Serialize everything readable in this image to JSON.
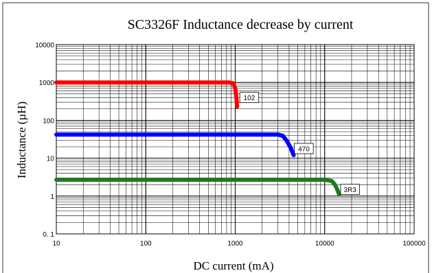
{
  "chart_data": {
    "type": "line",
    "title": "SC3326F Inductance decrease by current",
    "xlabel": "DC current (mA)",
    "ylabel": "Inductance (µH)",
    "x_scale": "log",
    "y_scale": "log",
    "xlim": [
      10,
      100000
    ],
    "ylim": [
      0.1,
      10000
    ],
    "x_ticks": [
      10,
      100,
      1000,
      10000,
      100000
    ],
    "x_tick_labels": [
      "10",
      "100",
      "1000",
      "10000",
      "100000"
    ],
    "y_ticks": [
      0.1,
      1,
      10,
      100,
      1000,
      10000
    ],
    "y_tick_labels": [
      "0. 1",
      "1",
      "10",
      "100",
      "1000",
      "10000"
    ],
    "grid": true,
    "series": [
      {
        "name": "102",
        "color": "#ff0000",
        "x": [
          10,
          100,
          500,
          850,
          950,
          1000,
          1030,
          1050
        ],
        "y": [
          1000,
          1000,
          1000,
          1000,
          950,
          700,
          400,
          230
        ]
      },
      {
        "name": "470",
        "color": "#0000ff",
        "x": [
          10,
          100,
          1000,
          3000,
          3400,
          3800,
          4200,
          4500
        ],
        "y": [
          42,
          42,
          42,
          42,
          39,
          28,
          18,
          12
        ]
      },
      {
        "name": "3R3",
        "color": "#1f7a1f",
        "x": [
          10,
          100,
          1000,
          10000,
          12000,
          13000,
          13800,
          14500
        ],
        "y": [
          2.7,
          2.7,
          2.7,
          2.7,
          2.5,
          2.0,
          1.5,
          1.1
        ]
      }
    ]
  }
}
